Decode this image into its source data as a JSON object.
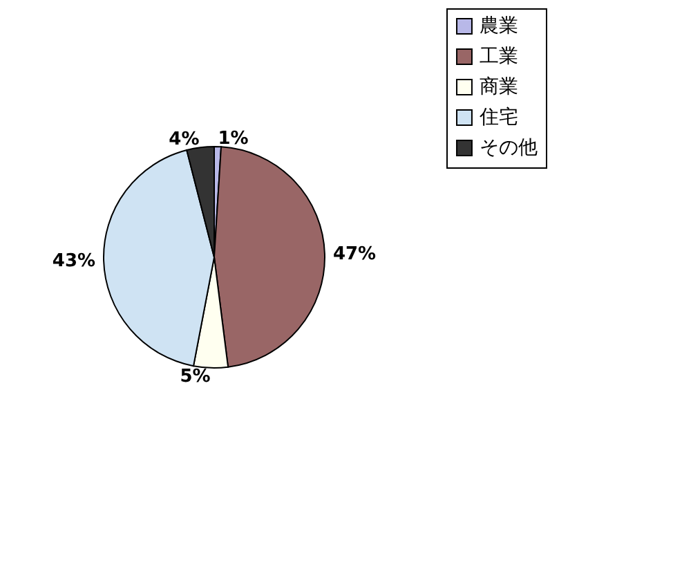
{
  "chart_data": {
    "type": "pie",
    "categories": [
      "農業",
      "工業",
      "商業",
      "住宅",
      "その他"
    ],
    "values": [
      1,
      47,
      5,
      43,
      4
    ],
    "value_labels": [
      "1%",
      "47%",
      "5%",
      "43%",
      "4%"
    ],
    "colors": [
      "#b8b8e8",
      "#996666",
      "#fffff0",
      "#cfe3f3",
      "#333333"
    ],
    "legend": "right"
  }
}
